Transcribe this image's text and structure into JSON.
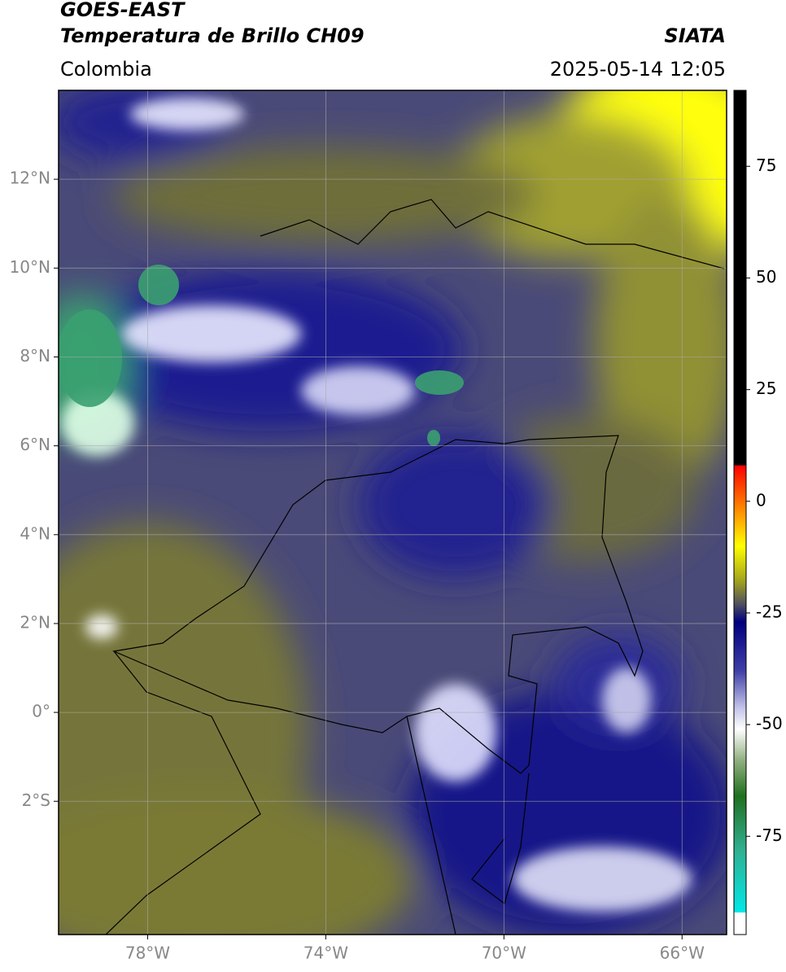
{
  "header": {
    "satellite": "GOES-EAST",
    "product": "Temperatura de Brillo CH09",
    "agency": "SIATA",
    "region": "Colombia",
    "timestamp": "2025-05-14 12:05"
  },
  "map": {
    "xlim": [
      -80,
      -65
    ],
    "ylim": [
      -5,
      14
    ],
    "xticks": [
      {
        "value": -78,
        "label": "78°W"
      },
      {
        "value": -74,
        "label": "74°W"
      },
      {
        "value": -70,
        "label": "70°W"
      },
      {
        "value": -66,
        "label": "66°W"
      }
    ],
    "yticks": [
      {
        "value": 12,
        "label": "12°N"
      },
      {
        "value": 10,
        "label": "10°N"
      },
      {
        "value": 8,
        "label": "8°N"
      },
      {
        "value": 6,
        "label": "6°N"
      },
      {
        "value": 4,
        "label": "4°N"
      },
      {
        "value": 2,
        "label": "2°N"
      },
      {
        "value": 0,
        "label": "0°"
      },
      {
        "value": -2,
        "label": "2°S"
      }
    ],
    "grid": true
  },
  "colorbar": {
    "lim": [
      -97,
      92
    ],
    "ticks": [
      75,
      50,
      25,
      0,
      -25,
      -50,
      -75
    ],
    "stops": [
      {
        "value": 92,
        "color": "#000000"
      },
      {
        "value": 8.1,
        "color": "#000000"
      },
      {
        "value": 8,
        "color": "#ff0000"
      },
      {
        "value": 0,
        "color": "#ff7000"
      },
      {
        "value": -10,
        "color": "#ffff00"
      },
      {
        "value": -18,
        "color": "#a0a020"
      },
      {
        "value": -23,
        "color": "#505060"
      },
      {
        "value": -27,
        "color": "#000080"
      },
      {
        "value": -38,
        "color": "#4040a8"
      },
      {
        "value": -46,
        "color": "#c0c0e8"
      },
      {
        "value": -51,
        "color": "#ffffff"
      },
      {
        "value": -58,
        "color": "#90b080"
      },
      {
        "value": -66,
        "color": "#207020"
      },
      {
        "value": -78,
        "color": "#30b090"
      },
      {
        "value": -92,
        "color": "#00e8e8"
      },
      {
        "value": -92.1,
        "color": "#ffffff"
      },
      {
        "value": -97,
        "color": "#ffffff"
      }
    ]
  }
}
